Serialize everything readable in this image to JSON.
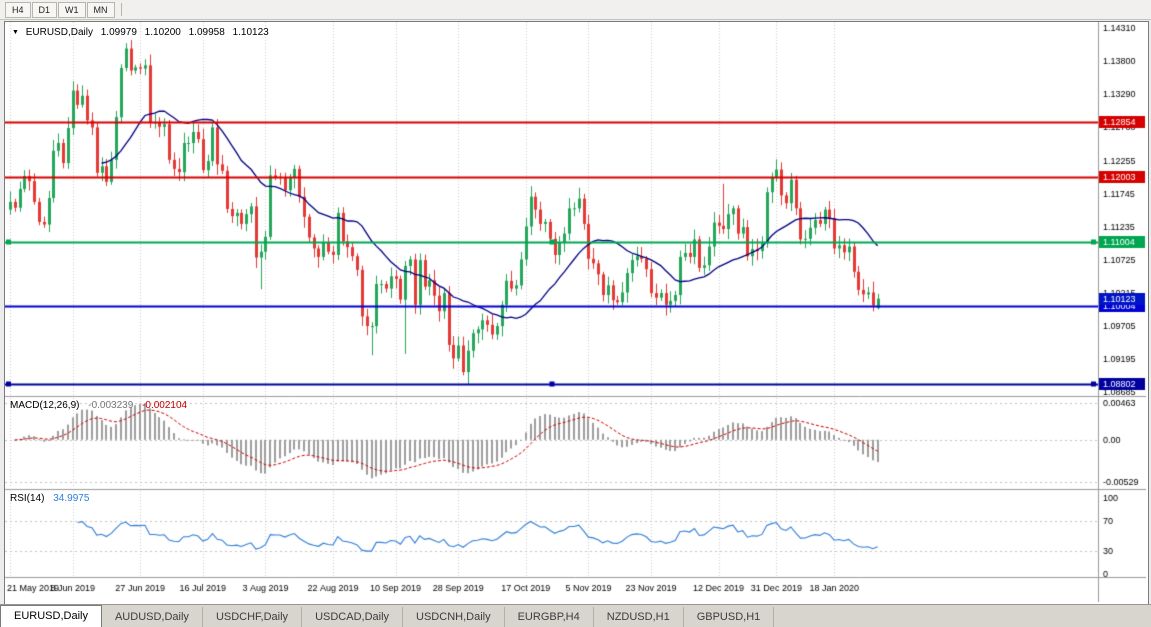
{
  "toolbar": {
    "buttons": [
      "H4",
      "D1",
      "W1",
      "MN"
    ]
  },
  "chart": {
    "legend": {
      "title": "EURUSD,Daily",
      "open": "1.09979",
      "high": "1.10200",
      "low": "1.09958",
      "close": "1.10123"
    }
  },
  "indicators": {
    "macd": {
      "label": "MACD(12,26,9)",
      "value_main": "-0.003239",
      "value_signal": "-0.002104"
    },
    "rsi": {
      "label": "RSI(14)",
      "value": "34.9975"
    }
  },
  "tabs": {
    "active_index": 0,
    "items": [
      "EURUSD,Daily",
      "AUDUSD,Daily",
      "USDCHF,Daily",
      "USDCAD,Daily",
      "USDCNH,Daily",
      "EURGBP,H4",
      "NZDUSD,H1",
      "GBPUSD,H1"
    ]
  },
  "chart_data": {
    "type": "candlestick",
    "symbol": "EURUSD",
    "timeframe": "Daily",
    "first_open": 1.115,
    "closes": [
      1.1162,
      1.1153,
      1.1182,
      1.1202,
      1.1194,
      1.1162,
      1.1131,
      1.1127,
      1.1168,
      1.1241,
      1.1253,
      1.1222,
      1.1276,
      1.1334,
      1.1312,
      1.1326,
      1.1288,
      1.1277,
      1.1207,
      1.1217,
      1.1193,
      1.1227,
      1.1293,
      1.1369,
      1.1399,
      1.1365,
      1.137,
      1.1368,
      1.1373,
      1.1285,
      1.1285,
      1.1278,
      1.1282,
      1.1227,
      1.1213,
      1.1208,
      1.1253,
      1.1253,
      1.127,
      1.1259,
      1.1211,
      1.1225,
      1.1277,
      1.122,
      1.121,
      1.1151,
      1.114,
      1.1145,
      1.1128,
      1.1143,
      1.1155,
      1.1076,
      1.1085,
      1.1108,
      1.1203,
      1.12,
      1.1199,
      1.118,
      1.1199,
      1.1213,
      1.117,
      1.1139,
      1.1107,
      1.109,
      1.1077,
      1.11,
      1.1085,
      1.108,
      1.1145,
      1.1101,
      1.1092,
      1.1078,
      1.1057,
      1.0985,
      1.097,
      1.097,
      1.1035,
      1.1035,
      1.1028,
      1.1047,
      1.1043,
      1.1011,
      1.1063,
      1.1073,
      1.1003,
      1.1072,
      1.1031,
      1.1041,
      1.1017,
      1.0993,
      1.1021,
      1.0941,
      1.092,
      1.094,
      1.0899,
      1.0932,
      1.0959,
      1.0965,
      1.0979,
      1.0972,
      1.0957,
      1.097,
      1.1003,
      1.104,
      1.1028,
      1.1033,
      1.1073,
      1.1124,
      1.117,
      1.115,
      1.1128,
      1.1131,
      1.1105,
      1.108,
      1.1099,
      1.1113,
      1.1152,
      1.1152,
      1.1167,
      1.1128,
      1.1074,
      1.1067,
      1.105,
      1.1018,
      1.1033,
      1.101,
      1.1007,
      1.1022,
      1.1052,
      1.1072,
      1.1078,
      1.1074,
      1.1058,
      1.1021,
      1.1014,
      1.1021,
      1.1003,
      1.1009,
      1.1018,
      1.1077,
      1.1083,
      1.1077,
      1.1104,
      1.106,
      1.1064,
      1.1093,
      1.113,
      1.1125,
      1.112,
      1.1143,
      1.1152,
      1.1113,
      1.1123,
      1.1078,
      1.1089,
      1.1086,
      1.1098,
      1.1177,
      1.1199,
      1.1212,
      1.1172,
      1.116,
      1.1196,
      1.1152,
      1.1104,
      1.1105,
      1.1122,
      1.1134,
      1.1128,
      1.115,
      1.1136,
      1.109,
      1.1095,
      1.1084,
      1.1093,
      1.1054,
      1.1026,
      1.1019,
      1.1022,
      1.1002,
      1.10123
    ],
    "last_bar": {
      "o": 1.09979,
      "h": 1.102,
      "l": 1.09958,
      "c": 1.10123
    },
    "wick_overrides": {
      "25": {
        "h": 1.1412
      },
      "52": {
        "l": 1.1027
      },
      "75": {
        "l": 1.0925
      },
      "82": {
        "l": 1.0927
      },
      "95": {
        "l": 1.088
      },
      "148": {
        "h": 1.119
      }
    },
    "x_labels": [
      {
        "label": "21 May 2019",
        "i": 0
      },
      {
        "label": "8 Jun 2019",
        "i": 13
      },
      {
        "label": "27 Jun 2019",
        "i": 27
      },
      {
        "label": "16 Jul 2019",
        "i": 40
      },
      {
        "label": "3 Aug 2019",
        "i": 53
      },
      {
        "label": "22 Aug 2019",
        "i": 67
      },
      {
        "label": "10 Sep 2019",
        "i": 80
      },
      {
        "label": "28 Sep 2019",
        "i": 93
      },
      {
        "label": "17 Oct 2019",
        "i": 107
      },
      {
        "label": "5 Nov 2019",
        "i": 120
      },
      {
        "label": "23 Nov 2019",
        "i": 133
      },
      {
        "label": "12 Dec 2019",
        "i": 147
      },
      {
        "label": "31 Dec 2019",
        "i": 159
      },
      {
        "label": "18 Jan 2020",
        "i": 171
      }
    ],
    "y_axis_labels": [
      "1.14310",
      "1.13800",
      "1.13290",
      "1.12780",
      "1.12255",
      "1.11745",
      "1.11235",
      "1.10725",
      "1.10215",
      "1.09705",
      "1.09195",
      "1.08685"
    ],
    "y_range": {
      "max": 1.144,
      "min": 1.0862
    },
    "hlines": [
      {
        "price": 1.12854,
        "label": "1.12854",
        "color": "#d60000",
        "width": 2
      },
      {
        "price": 1.12003,
        "label": "1.12003",
        "color": "#d60000",
        "width": 2
      },
      {
        "price": 1.11004,
        "label": "1.11004",
        "color": "#00a651",
        "width": 2,
        "handles": true
      },
      {
        "price": 1.10004,
        "label": "1.10004",
        "color": "#0000d2",
        "width": 2
      },
      {
        "price": 1.08802,
        "label": "1.08802",
        "color": "#0000a0",
        "width": 2,
        "handles": true
      }
    ],
    "current_price": {
      "price": 1.10123,
      "label": "1.10123",
      "color": "#0014c8"
    },
    "ma": {
      "period": 20,
      "color": "#000080"
    },
    "macd": {
      "fast": 12,
      "slow": 26,
      "signal": 9,
      "axis": [
        {
          "label": "0.00463",
          "v": 0.00463
        },
        {
          "label": "0.00",
          "v": 0
        },
        {
          "label": "-0.00529",
          "v": -0.00529
        }
      ],
      "range": {
        "max": 0.0052,
        "min": -0.006
      },
      "hist_color": "#9e9e9e",
      "signal_color": "#cc0000"
    },
    "rsi": {
      "period": 14,
      "axis": [
        {
          "label": "100",
          "v": 100
        },
        {
          "label": "70",
          "v": 70
        },
        {
          "label": "30",
          "v": 30
        },
        {
          "label": "0",
          "v": 0
        }
      ],
      "levels": [
        70,
        30
      ],
      "color": "#2f7ed8"
    },
    "colors": {
      "bull": "#26a65b",
      "bear": "#e53935",
      "grid": "#cdcdcd",
      "bg": "#ffffff",
      "text": "#000000",
      "border": "#9a9a9a"
    }
  }
}
